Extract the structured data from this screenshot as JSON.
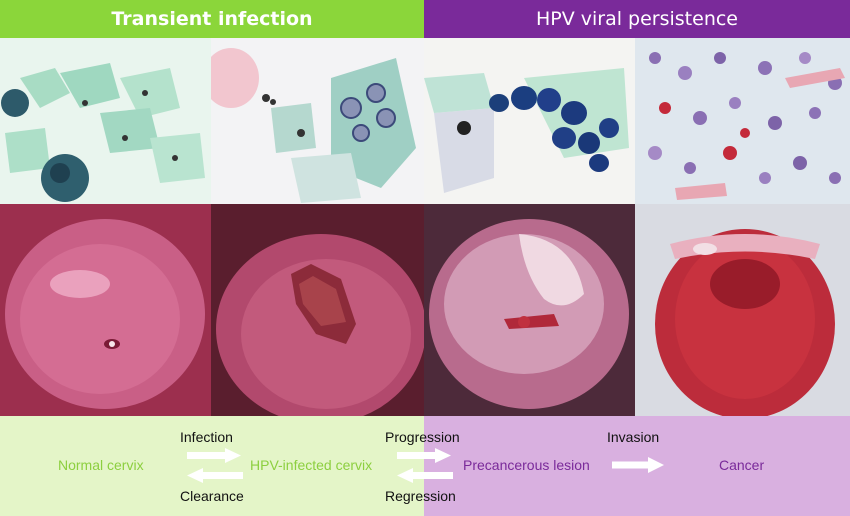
{
  "header": {
    "left_title": "Transient infection",
    "right_title": "HPV viral persistence"
  },
  "stages": {
    "normal": "Normal cervix",
    "infected": "HPV-infected cervix",
    "precancer": "Precancerous lesion",
    "cancer": "Cancer"
  },
  "transitions": {
    "infection": "Infection",
    "clearance": "Clearance",
    "progression": "Progression",
    "regression": "Regression",
    "invasion": "Invasion"
  },
  "colors": {
    "transient_header": "#8bd63a",
    "persistence_header": "#7a2a9a",
    "transient_bg": "#e4f5c8",
    "persistence_bg": "#d9b0e0",
    "stage_green_text": "#8ccf3f",
    "stage_purple_text": "#7a2a9a"
  }
}
